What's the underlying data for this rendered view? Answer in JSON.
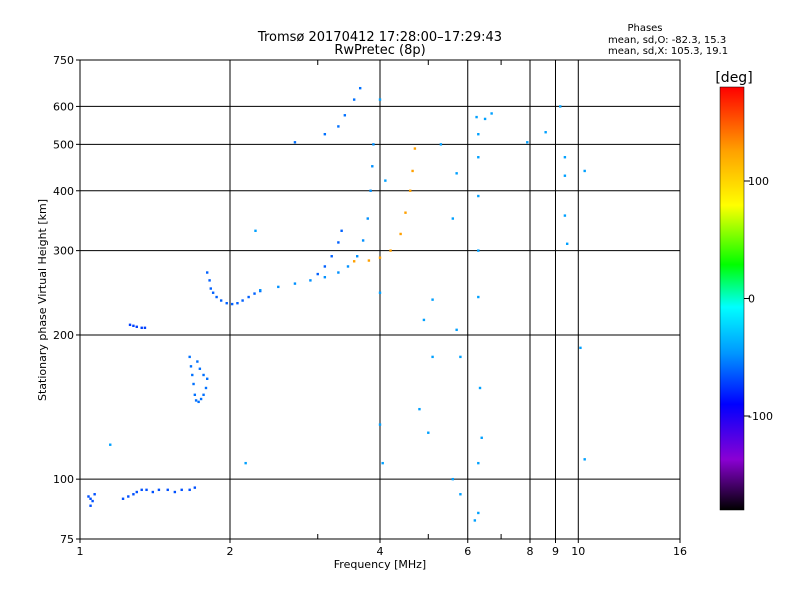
{
  "chart_data": {
    "type": "scatter",
    "title": "Tromsø 20170412 17:28:00–17:29:43",
    "subtitle": "RwPretec (8p)",
    "corner_text": [
      "Phases",
      "mean, sd,O: -82.3, 15.3",
      "mean, sd,X: 105.3, 19.1"
    ],
    "xlabel": "Frequency [MHz]",
    "ylabel": "Stationary phase Virtual Height [km]",
    "x_scale": "log",
    "y_scale": "log",
    "xlim": [
      1,
      16
    ],
    "ylim": [
      75,
      750
    ],
    "x_ticks": [
      1,
      2,
      4,
      6,
      8,
      9,
      10,
      16
    ],
    "x_tick_labels": [
      "1",
      "2",
      "4",
      "6",
      "8",
      "9",
      "10",
      "16"
    ],
    "x_minor_ticks": [
      3,
      5,
      7
    ],
    "y_ticks": [
      75,
      100,
      200,
      300,
      400,
      500,
      600,
      750
    ],
    "y_tick_labels": [
      "75",
      "100",
      "200",
      "300",
      "400",
      "500",
      "600",
      "750"
    ],
    "grid": true,
    "colorbar": {
      "label": "[deg]",
      "range": [
        -180,
        180
      ],
      "ticks": [
        100,
        0,
        -100
      ],
      "tick_labels": [
        "100",
        "0",
        "-100"
      ],
      "colors": [
        "#000000",
        "#8a00d4",
        "#0000ff",
        "#0096ff",
        "#00ffff",
        "#00ff00",
        "#ffff00",
        "#ffa000",
        "#ff0000"
      ]
    },
    "series": [
      {
        "trace": "low-frequency echo near 95 km",
        "color": "#0050ff",
        "points": [
          [
            1.04,
            92
          ],
          [
            1.05,
            91
          ],
          [
            1.06,
            90
          ],
          [
            1.05,
            88
          ],
          [
            1.07,
            93
          ],
          [
            1.22,
            91
          ],
          [
            1.25,
            92
          ],
          [
            1.28,
            93
          ],
          [
            1.3,
            94
          ],
          [
            1.33,
            95
          ],
          [
            1.36,
            95
          ],
          [
            1.4,
            94
          ],
          [
            1.44,
            95
          ],
          [
            1.5,
            95
          ],
          [
            1.55,
            94
          ],
          [
            1.6,
            95
          ],
          [
            1.66,
            95
          ],
          [
            1.7,
            96
          ]
        ]
      },
      {
        "trace": "echo near 210 km",
        "color": "#0040ff",
        "points": [
          [
            1.26,
            210
          ],
          [
            1.28,
            209
          ],
          [
            1.3,
            208
          ],
          [
            1.33,
            207
          ],
          [
            1.35,
            207
          ]
        ]
      },
      {
        "trace": "echo 140-185 km",
        "color": "#0070ff",
        "points": [
          [
            1.66,
            180
          ],
          [
            1.67,
            172
          ],
          [
            1.68,
            165
          ],
          [
            1.69,
            158
          ],
          [
            1.7,
            150
          ],
          [
            1.71,
            146
          ],
          [
            1.73,
            145
          ],
          [
            1.75,
            147
          ],
          [
            1.77,
            150
          ],
          [
            1.79,
            155
          ],
          [
            1.8,
            162
          ],
          [
            1.72,
            176
          ],
          [
            1.74,
            170
          ],
          [
            1.77,
            165
          ]
        ]
      },
      {
        "trace": "low-frequency branch 230-300 km",
        "color": "#0060ff",
        "points": [
          [
            1.8,
            270
          ],
          [
            1.82,
            260
          ],
          [
            1.83,
            250
          ],
          [
            1.85,
            245
          ],
          [
            1.88,
            240
          ],
          [
            1.92,
            236
          ],
          [
            1.97,
            233
          ],
          [
            2.02,
            232
          ],
          [
            2.07,
            233
          ],
          [
            2.12,
            236
          ],
          [
            2.18,
            240
          ],
          [
            2.24,
            244
          ],
          [
            2.3,
            247
          ]
        ]
      },
      {
        "trace": "main trace",
        "color": "#0090ff",
        "points": [
          [
            2.3,
            248
          ],
          [
            2.5,
            252
          ],
          [
            2.7,
            256
          ],
          [
            2.9,
            260
          ],
          [
            3.1,
            264
          ],
          [
            3.3,
            270
          ],
          [
            3.45,
            278
          ],
          [
            3.6,
            292
          ],
          [
            3.7,
            315
          ],
          [
            3.78,
            350
          ],
          [
            3.83,
            400
          ],
          [
            3.86,
            450
          ],
          [
            3.88,
            500
          ]
        ]
      },
      {
        "trace": "upper branch",
        "color": "#0070ff",
        "points": [
          [
            2.7,
            505
          ],
          [
            3.1,
            525
          ],
          [
            3.3,
            545
          ],
          [
            3.4,
            575
          ],
          [
            3.55,
            620
          ],
          [
            3.65,
            655
          ]
        ]
      },
      {
        "trace": "descending echo 270-330 km",
        "color": "#0060ff",
        "points": [
          [
            3.0,
            268
          ],
          [
            3.1,
            278
          ],
          [
            3.2,
            292
          ],
          [
            3.3,
            312
          ],
          [
            3.35,
            330
          ]
        ]
      },
      {
        "trace": "second branch",
        "color": "#ffa000",
        "points": [
          [
            3.55,
            285
          ],
          [
            3.8,
            286
          ],
          [
            4.0,
            290
          ],
          [
            4.2,
            300
          ],
          [
            4.4,
            325
          ],
          [
            4.5,
            360
          ],
          [
            4.6,
            400
          ],
          [
            4.65,
            440
          ],
          [
            4.7,
            490
          ]
        ]
      },
      {
        "trace": "scattered points",
        "color": "#00a0ff",
        "points": [
          [
            1.15,
            118
          ],
          [
            2.15,
            108
          ],
          [
            2.25,
            330
          ],
          [
            4.0,
            620
          ],
          [
            4.0,
            245
          ],
          [
            4.0,
            130
          ],
          [
            4.05,
            108
          ],
          [
            4.1,
            420
          ],
          [
            5.1,
            237
          ],
          [
            4.9,
            215
          ],
          [
            5.1,
            180
          ],
          [
            4.8,
            140
          ],
          [
            5.0,
            125
          ],
          [
            5.6,
            350
          ],
          [
            5.7,
            205
          ],
          [
            5.8,
            180
          ],
          [
            6.25,
            570
          ],
          [
            6.3,
            525
          ],
          [
            6.3,
            470
          ],
          [
            6.3,
            390
          ],
          [
            6.3,
            300
          ],
          [
            6.3,
            240
          ],
          [
            6.35,
            155
          ],
          [
            6.4,
            122
          ],
          [
            6.3,
            108
          ],
          [
            6.3,
            85
          ],
          [
            6.2,
            82
          ],
          [
            6.5,
            565
          ],
          [
            6.7,
            580
          ],
          [
            7.9,
            505
          ],
          [
            8.6,
            530
          ],
          [
            9.2,
            600
          ],
          [
            9.4,
            470
          ],
          [
            9.4,
            430
          ],
          [
            9.4,
            355
          ],
          [
            9.5,
            310
          ],
          [
            10.3,
            440
          ],
          [
            10.1,
            188
          ],
          [
            10.3,
            110
          ],
          [
            5.6,
            100
          ],
          [
            5.8,
            93
          ],
          [
            5.7,
            435
          ],
          [
            5.3,
            500
          ]
        ]
      }
    ]
  }
}
